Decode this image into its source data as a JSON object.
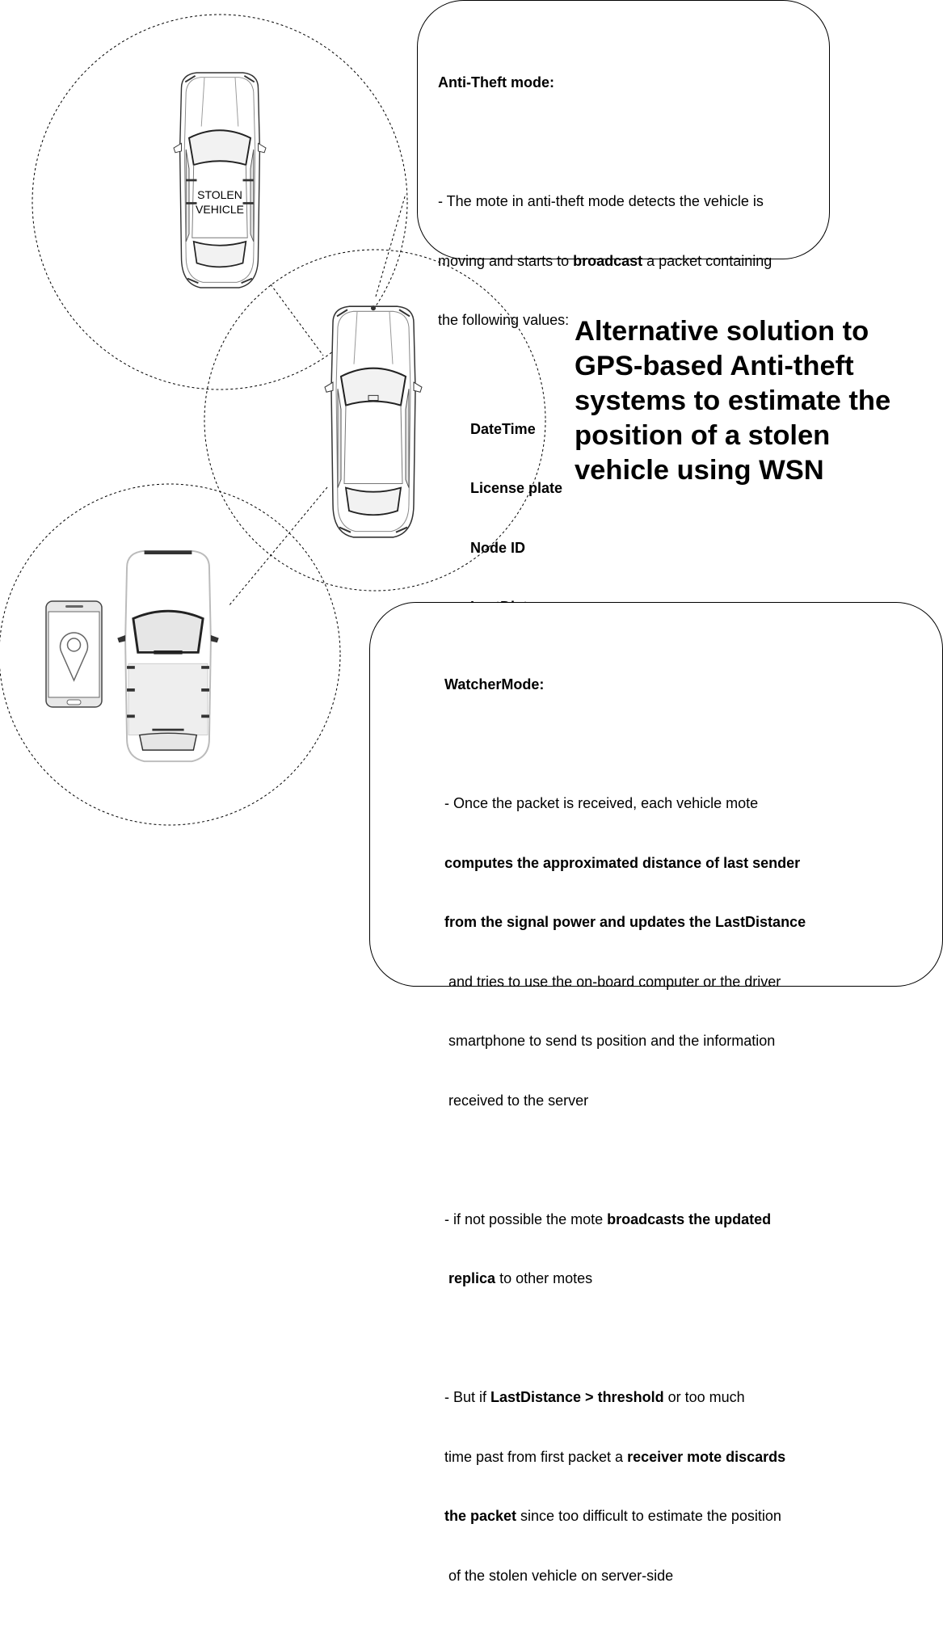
{
  "title": "Alternative solution to GPS-based Anti-theft systems to estimate the position of a stolen vehicle using WSN",
  "car_label": {
    "line1": "STOLEN",
    "line2": "VEHICLE"
  },
  "anti_theft": {
    "heading": "Anti-Theft mode:",
    "p1_a": "- The mote in anti-theft mode detects the vehicle is",
    "p1_b": "moving and starts to ",
    "p1_bold": "broadcast",
    "p1_c": " a packet containing",
    "p1_d": "the following values:",
    "values": [
      "DateTime",
      "License plate",
      "Node ID",
      "LastDistance"
    ]
  },
  "watcher": {
    "heading": "WatcherMode:",
    "l1": "- Once the packet is received, each vehicle mote",
    "l2": "computes the approximated distance of last sender",
    "l3": "from the signal power and updates the LastDistance",
    "l4": " and tries to use the on-board computer or the driver",
    "l5": " smartphone to send ts position and the information",
    "l6": " received to the server",
    "l7_a": "- if not possible the mote ",
    "l7_bold": "broadcasts the updated",
    "l8_bold": "replica",
    "l8_b": " to other motes",
    "l9_a": "- But if ",
    "l9_bold": "LastDistance > threshold",
    "l9_b": " or too much",
    "l10_a": "time past from first packet a ",
    "l10_bold": "receiver mote discards",
    "l11_bold": "the packet",
    "l11_b": " since too difficult to estimate the position",
    "l12": " of the stolen vehicle on server-side"
  },
  "icons": [
    "car-top-view-icon",
    "smartphone-icon",
    "map-pin-icon"
  ]
}
